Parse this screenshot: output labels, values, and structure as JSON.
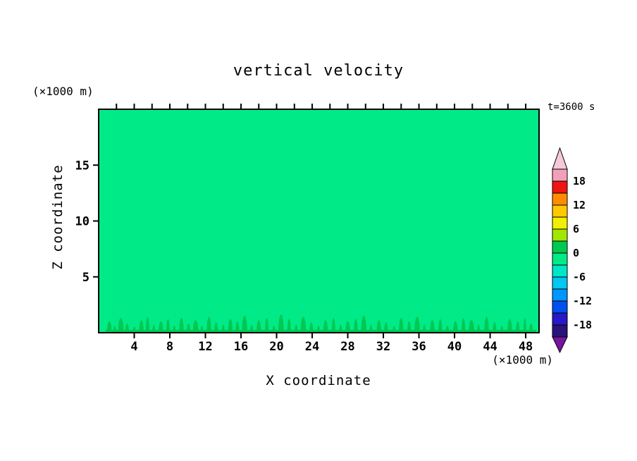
{
  "title": "vertical velocity",
  "annotations": {
    "time_label": "t=3600 s",
    "y_unit_label": "(×1000 m)",
    "x_unit_label": "(×1000 m)"
  },
  "axes": {
    "x_label": "X coordinate",
    "y_label": "Z coordinate"
  },
  "chart_data": {
    "type": "heatmap",
    "title": "vertical velocity",
    "xlabel": "X coordinate (×1000 m)",
    "ylabel": "Z coordinate (×1000 m)",
    "time_label": "t=3600 s",
    "xlim": [
      0,
      49.5
    ],
    "ylim": [
      0,
      20
    ],
    "x_ticks": [
      4,
      8,
      12,
      16,
      20,
      24,
      28,
      32,
      36,
      40,
      44,
      48
    ],
    "x_minor_tick_step": 2,
    "y_ticks": [
      5,
      10,
      15
    ],
    "grid": false,
    "field_description": "Vertical velocity field is nearly uniform at 0 (filled spring-green band) with small shallow positive updraft cells confined to the lowest ~1.5 km above the surface.",
    "background_value": 0,
    "background_color": "#00EA88",
    "updraft_color": "#00C850",
    "surface_updrafts": [
      [
        1.2,
        0.5,
        0.9
      ],
      [
        1.8,
        0.3,
        0.5
      ],
      [
        2.5,
        0.6,
        1.2
      ],
      [
        3.2,
        0.4,
        0.7
      ],
      [
        4.0,
        0.3,
        0.4
      ],
      [
        4.8,
        0.5,
        1.0
      ],
      [
        5.5,
        0.4,
        1.3
      ],
      [
        6.2,
        0.3,
        0.6
      ],
      [
        7.0,
        0.5,
        0.9
      ],
      [
        7.8,
        0.4,
        1.1
      ],
      [
        8.5,
        0.3,
        0.5
      ],
      [
        9.3,
        0.5,
        1.2
      ],
      [
        10.1,
        0.4,
        0.7
      ],
      [
        10.9,
        0.6,
        1.0
      ],
      [
        11.6,
        0.3,
        0.5
      ],
      [
        12.4,
        0.5,
        1.3
      ],
      [
        13.2,
        0.4,
        0.8
      ],
      [
        14.0,
        0.3,
        0.6
      ],
      [
        14.8,
        0.5,
        1.1
      ],
      [
        15.6,
        0.4,
        0.9
      ],
      [
        16.4,
        0.6,
        1.4
      ],
      [
        17.2,
        0.3,
        0.6
      ],
      [
        18.0,
        0.5,
        1.0
      ],
      [
        18.9,
        0.4,
        1.2
      ],
      [
        19.7,
        0.3,
        0.5
      ],
      [
        20.5,
        0.6,
        1.5
      ],
      [
        21.4,
        0.4,
        1.1
      ],
      [
        22.2,
        0.3,
        0.6
      ],
      [
        23.0,
        0.6,
        1.3
      ],
      [
        23.9,
        0.4,
        0.8
      ],
      [
        24.7,
        0.3,
        0.5
      ],
      [
        25.5,
        0.5,
        1.0
      ],
      [
        26.4,
        0.4,
        1.2
      ],
      [
        27.2,
        0.3,
        0.6
      ],
      [
        28.0,
        0.5,
        0.9
      ],
      [
        28.9,
        0.4,
        1.1
      ],
      [
        29.8,
        0.6,
        1.4
      ],
      [
        30.6,
        0.3,
        0.6
      ],
      [
        31.5,
        0.5,
        1.0
      ],
      [
        32.3,
        0.4,
        0.8
      ],
      [
        33.2,
        0.3,
        0.5
      ],
      [
        34.0,
        0.5,
        1.2
      ],
      [
        34.9,
        0.4,
        0.9
      ],
      [
        35.8,
        0.6,
        1.3
      ],
      [
        36.6,
        0.3,
        0.6
      ],
      [
        37.5,
        0.5,
        1.0
      ],
      [
        38.4,
        0.4,
        1.1
      ],
      [
        39.2,
        0.3,
        0.5
      ],
      [
        40.1,
        0.5,
        0.9
      ],
      [
        41.0,
        0.4,
        1.2
      ],
      [
        41.9,
        0.6,
        1.0
      ],
      [
        42.7,
        0.3,
        0.6
      ],
      [
        43.6,
        0.5,
        1.3
      ],
      [
        44.5,
        0.4,
        0.8
      ],
      [
        45.3,
        0.3,
        0.5
      ],
      [
        46.2,
        0.5,
        1.1
      ],
      [
        47.1,
        0.4,
        0.9
      ],
      [
        47.9,
        0.3,
        1.2
      ],
      [
        48.6,
        0.4,
        0.7
      ]
    ],
    "colorbar": {
      "vmax": 21,
      "vmin": -21,
      "step": 3,
      "labels": [
        18,
        12,
        6,
        0,
        -6,
        -12,
        -18
      ],
      "segment_colors": [
        "#F2A0B9",
        "#F01414",
        "#FF8C00",
        "#FFC800",
        "#F0F000",
        "#A0E600",
        "#00C850",
        "#00EA88",
        "#00E6C8",
        "#00C8F0",
        "#0096FF",
        "#0050F0",
        "#2818C8",
        "#281478"
      ],
      "top_arrow_color": "#F6C8DC",
      "bottom_arrow_color": "#7814A0"
    }
  }
}
